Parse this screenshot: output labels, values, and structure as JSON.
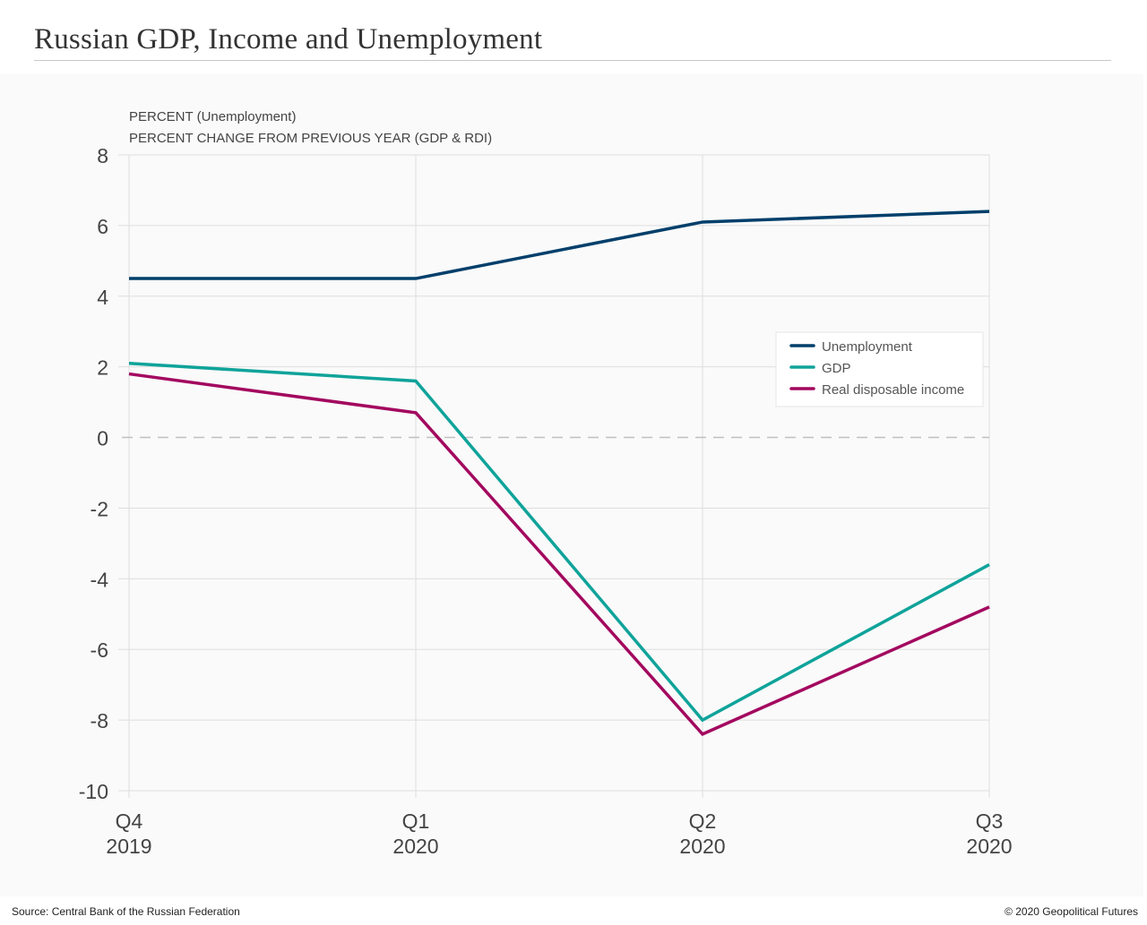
{
  "header": {
    "title": "Russian GDP, Income and Unemployment"
  },
  "footer": {
    "source": "Source: Central Bank of the Russian Federation",
    "copyright": "© 2020 Geopolitical Futures"
  },
  "chart_data": {
    "type": "line",
    "title": "Russian GDP, Income and Unemployment",
    "ylabel_lines": [
      "PERCENT (Unemployment)",
      "PERCENT CHANGE FROM PREVIOUS YEAR (GDP & RDI)"
    ],
    "xlabel": "",
    "categories": [
      {
        "quarter": "Q4",
        "year": "2019"
      },
      {
        "quarter": "Q1",
        "year": "2020"
      },
      {
        "quarter": "Q2",
        "year": "2020"
      },
      {
        "quarter": "Q3",
        "year": "2020"
      }
    ],
    "ylim": [
      -10,
      8
    ],
    "yticks": [
      8,
      6,
      4,
      2,
      0,
      -2,
      -4,
      -6,
      -8,
      -10
    ],
    "grid": true,
    "zero_line": "dashed",
    "legend_position": "right-middle",
    "series": [
      {
        "name": "Unemployment",
        "color": "#003f6b",
        "values": [
          4.5,
          4.5,
          6.1,
          6.4
        ]
      },
      {
        "name": "GDP",
        "color": "#0fa39a",
        "values": [
          2.1,
          1.6,
          -8.0,
          -3.6
        ]
      },
      {
        "name": "Real disposable income",
        "color": "#a3085f",
        "values": [
          1.8,
          0.7,
          -8.4,
          -4.8
        ]
      }
    ]
  }
}
